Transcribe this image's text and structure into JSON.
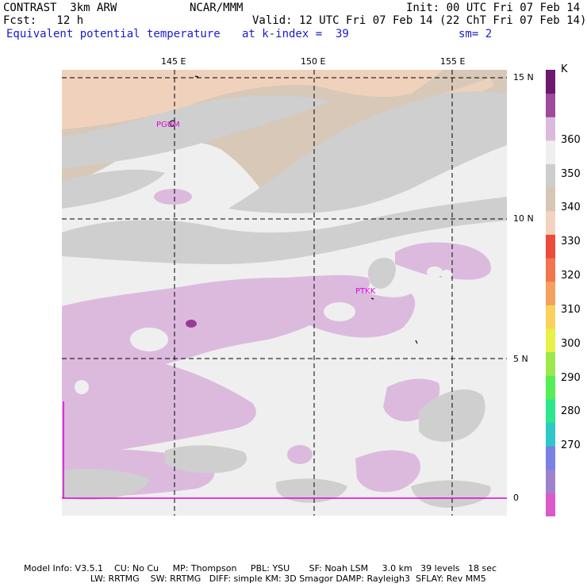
{
  "header": {
    "model": "CONTRAST  3km ARW",
    "center": "NCAR/MMM",
    "init": "Init: 00 UTC Fri 07 Feb 14",
    "fcst": "Fcst:   12 h",
    "valid": "Valid: 12 UTC Fri 07 Feb 14 (22 ChT Fri 07 Feb 14)",
    "field": "Equivalent potential temperature",
    "level": "at k-index =  39",
    "smoothing": "sm= 2"
  },
  "map": {
    "lon_labels": [
      "145 E",
      "150 E",
      "155 E"
    ],
    "lat_labels": [
      "15 N",
      "10 N",
      "5 N",
      "0"
    ],
    "stations": [
      "PGUM",
      "PTKK"
    ],
    "colors": {
      "land_tan": "#d8c8b8",
      "peach": "#f0d2bc",
      "gray": "#cfcfcf",
      "light": "#efefef",
      "lavender": "#dcbade",
      "purple": "#9a3a98",
      "station_magenta": "#e000e0",
      "grid_dash": "#000000"
    }
  },
  "colorbar": {
    "unit": "K",
    "labels": [
      "360",
      "350",
      "340",
      "330",
      "320",
      "310",
      "300",
      "290",
      "280",
      "270"
    ],
    "colors": [
      "#dc5ac8",
      "#9f82cc",
      "#7a80e6",
      "#2fc8c8",
      "#2be88c",
      "#55ee55",
      "#9de84c",
      "#e8f04a",
      "#f8d25a",
      "#f5a060",
      "#f0764e",
      "#ee4a3a",
      "#f2d4be",
      "#d6c6b6",
      "#cdcdcd",
      "#efefef",
      "#dcbade",
      "#a04a9e",
      "#6e1870"
    ]
  },
  "footer": {
    "line1": "Model Info: V3.5.1    CU: No Cu     MP: Thompson     PBL: YSU       SF: Noah LSM     3.0 km   39 levels   18 sec",
    "line2": "                        LW: RRTMG    SW: RRTMG   DIFF: simple KM: 3D Smagor DAMP: Rayleigh3  SFLAY: Rev MM5"
  }
}
